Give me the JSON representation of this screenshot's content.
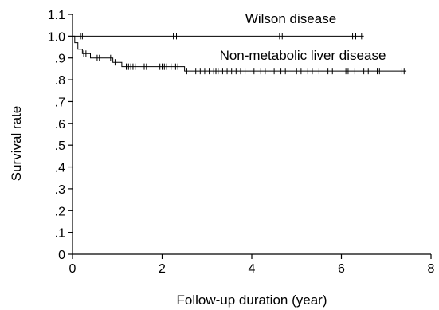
{
  "chart_data": {
    "type": "line",
    "subtype": "kaplan-meier",
    "xlabel": "Follow-up duration (year)",
    "ylabel": "Survival rate",
    "xlim": [
      0,
      8
    ],
    "ylim": [
      0,
      1.1
    ],
    "x_ticks": [
      0,
      2,
      4,
      6,
      8
    ],
    "x_tick_labels": [
      "0",
      "2",
      "4",
      "6",
      "8"
    ],
    "y_ticks": [
      0,
      0.1,
      0.2,
      0.3,
      0.4,
      0.5,
      0.6,
      0.7,
      0.8,
      0.9,
      1.0,
      1.1
    ],
    "y_tick_labels": [
      "0",
      ".1",
      ".2",
      ".3",
      ".4",
      ".5",
      ".6",
      ".7",
      ".8",
      ".9",
      "1.0",
      "1.1"
    ],
    "grid": false,
    "line_color": "#000000",
    "series": [
      {
        "name": "Wilson disease",
        "steps": [
          [
            0,
            1.0
          ],
          [
            6.5,
            1.0
          ]
        ],
        "censored": [
          0.18,
          0.22,
          2.25,
          2.32,
          4.62,
          4.68,
          4.72,
          6.25,
          6.32,
          6.45
        ]
      },
      {
        "name": "Non-metabolic liver disease",
        "steps": [
          [
            0,
            1.0
          ],
          [
            0.05,
            0.97
          ],
          [
            0.12,
            0.94
          ],
          [
            0.22,
            0.92
          ],
          [
            0.4,
            0.9
          ],
          [
            0.9,
            0.88
          ],
          [
            1.1,
            0.86
          ],
          [
            2.5,
            0.84
          ],
          [
            7.45,
            0.84
          ]
        ],
        "censored": [
          0.25,
          0.3,
          0.55,
          0.6,
          0.85,
          0.95,
          1.2,
          1.25,
          1.3,
          1.35,
          1.4,
          1.6,
          1.65,
          1.95,
          2.0,
          2.05,
          2.1,
          2.2,
          2.3,
          2.35,
          2.55,
          2.75,
          2.85,
          2.95,
          3.05,
          3.15,
          3.2,
          3.25,
          3.35,
          3.45,
          3.55,
          3.65,
          3.75,
          3.85,
          4.05,
          4.2,
          4.3,
          4.5,
          4.65,
          4.75,
          5.0,
          5.1,
          5.25,
          5.35,
          5.5,
          5.7,
          5.8,
          6.1,
          6.15,
          6.3,
          6.5,
          6.6,
          6.8,
          6.85,
          7.35,
          7.4
        ]
      }
    ]
  }
}
